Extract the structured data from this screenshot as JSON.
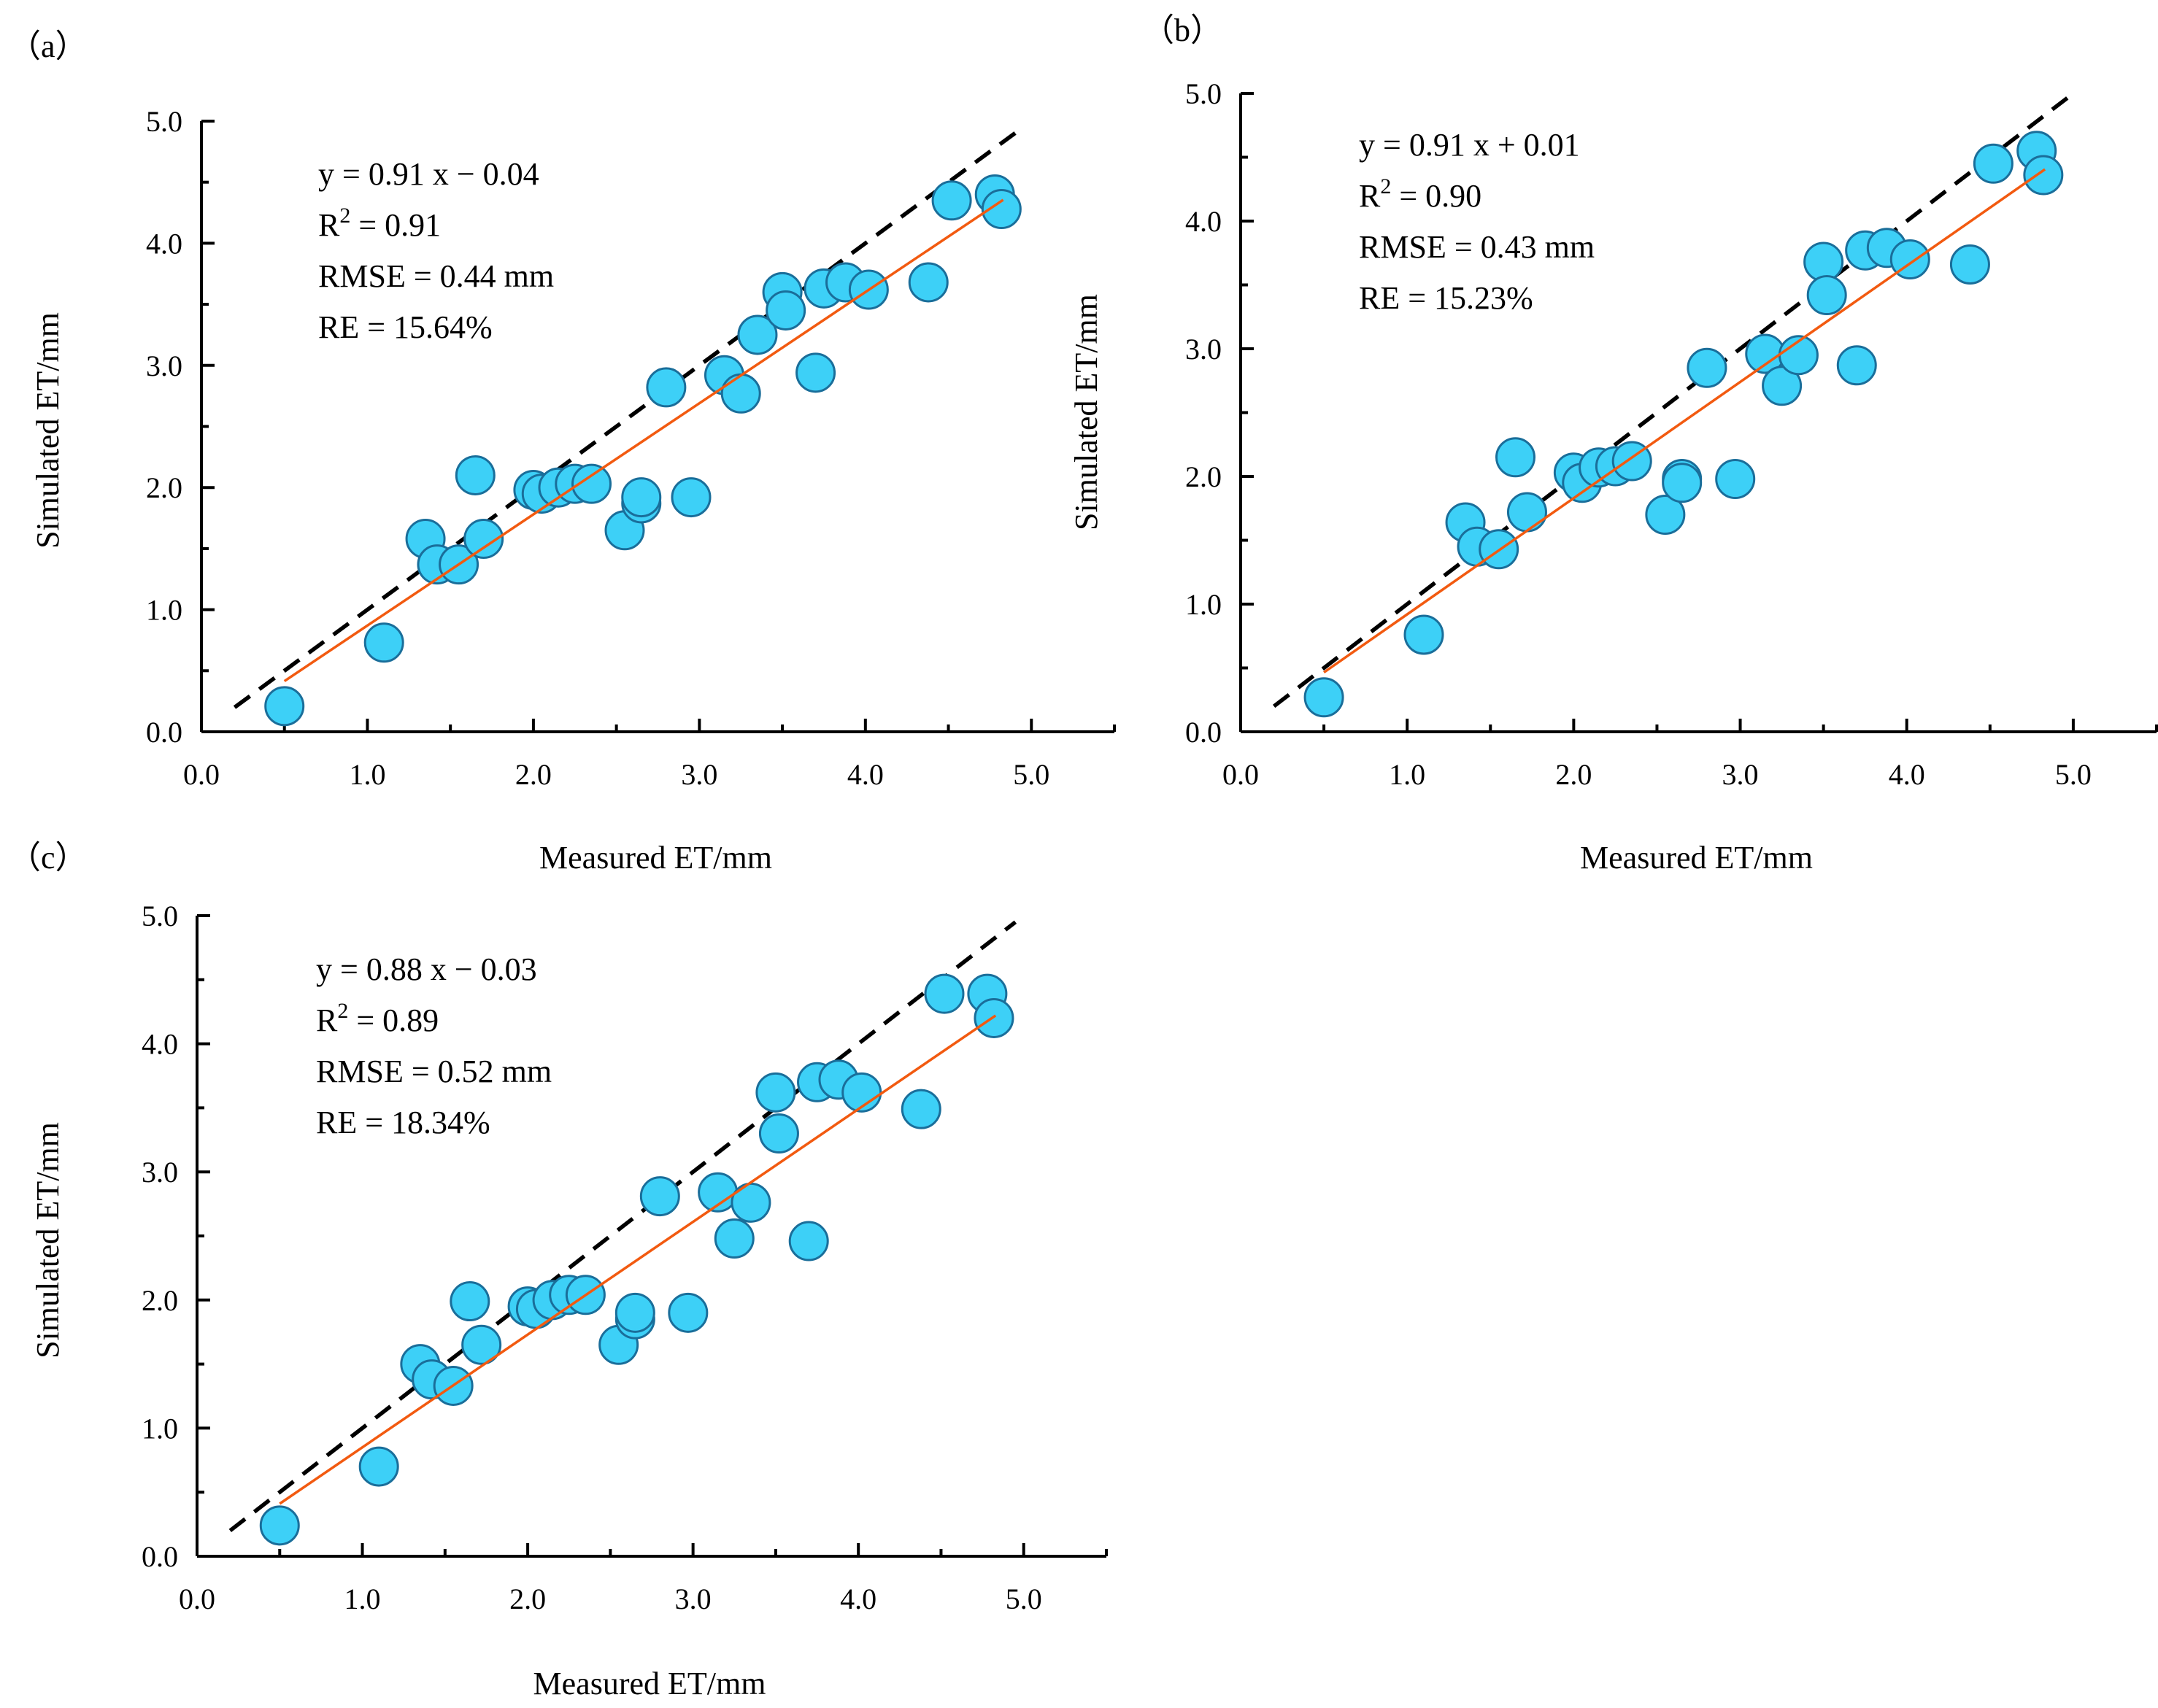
{
  "colors": {
    "point_fill": "#3DD0F7",
    "point_stroke": "#1A6E9A",
    "fit_line": "#F25A10",
    "reference_line": "#000000"
  },
  "chart_data": [
    {
      "panel_label": "（a）",
      "type": "scatter",
      "xlabel": "Measured ET/mm",
      "ylabel": "Simulated ET/mm",
      "xlim": [
        0,
        5.5
      ],
      "ylim": [
        0,
        5.0
      ],
      "xticks": [
        "0.0",
        "1.0",
        "2.0",
        "3.0",
        "4.0",
        "5.0"
      ],
      "yticks": [
        "0.0",
        "1.0",
        "2.0",
        "3.0",
        "4.0",
        "5.0"
      ],
      "stats": {
        "equation": "y = 0.91 x − 0.04",
        "r2_prefix": "R",
        "r2_value": " = 0.91",
        "rmse": "RMSE = 0.44 mm",
        "re": "RE = 15.64%"
      },
      "fit": {
        "slope": 0.91,
        "intercept": -0.04,
        "x_range": [
          0.5,
          4.83
        ]
      },
      "reference_line": {
        "slope": 1,
        "intercept": 0,
        "x_range": [
          0.2,
          4.95
        ]
      },
      "points": [
        [
          0.5,
          0.21
        ],
        [
          1.1,
          0.73
        ],
        [
          1.35,
          1.58
        ],
        [
          1.42,
          1.37
        ],
        [
          1.55,
          1.37
        ],
        [
          1.65,
          2.1
        ],
        [
          1.7,
          1.58
        ],
        [
          2.0,
          1.98
        ],
        [
          2.05,
          1.95
        ],
        [
          2.15,
          2.0
        ],
        [
          2.25,
          2.03
        ],
        [
          2.35,
          2.03
        ],
        [
          2.55,
          1.65
        ],
        [
          2.65,
          1.87
        ],
        [
          2.65,
          1.92
        ],
        [
          2.95,
          1.92
        ],
        [
          2.8,
          2.82
        ],
        [
          3.15,
          2.92
        ],
        [
          3.25,
          2.77
        ],
        [
          3.35,
          3.25
        ],
        [
          3.5,
          3.6
        ],
        [
          3.52,
          3.45
        ],
        [
          3.7,
          2.94
        ],
        [
          3.75,
          3.63
        ],
        [
          3.88,
          3.68
        ],
        [
          4.02,
          3.62
        ],
        [
          4.38,
          3.68
        ],
        [
          4.52,
          4.35
        ],
        [
          4.78,
          4.4
        ],
        [
          4.82,
          4.28
        ]
      ]
    },
    {
      "panel_label": "（b）",
      "type": "scatter",
      "xlabel": "Measured ET/mm",
      "ylabel": "Simulated ET/mm",
      "xlim": [
        0,
        5.5
      ],
      "ylim": [
        0,
        5.0
      ],
      "xticks": [
        "0.0",
        "1.0",
        "2.0",
        "3.0",
        "4.0",
        "5.0"
      ],
      "yticks": [
        "0.0",
        "1.0",
        "2.0",
        "3.0",
        "4.0",
        "5.0"
      ],
      "stats": {
        "equation": "y = 0.91 x + 0.01",
        "r2_prefix": "R",
        "r2_value": " = 0.90",
        "rmse": "RMSE = 0.43 mm",
        "re": "RE = 15.23%"
      },
      "fit": {
        "slope": 0.91,
        "intercept": 0.01,
        "x_range": [
          0.5,
          4.83
        ]
      },
      "reference_line": {
        "slope": 1,
        "intercept": 0,
        "x_range": [
          0.2,
          5.0
        ]
      },
      "points": [
        [
          0.5,
          0.27
        ],
        [
          1.1,
          0.76
        ],
        [
          1.35,
          1.64
        ],
        [
          1.42,
          1.45
        ],
        [
          1.55,
          1.43
        ],
        [
          1.65,
          2.15
        ],
        [
          1.72,
          1.72
        ],
        [
          2.0,
          2.03
        ],
        [
          2.05,
          1.95
        ],
        [
          2.15,
          2.07
        ],
        [
          2.25,
          2.08
        ],
        [
          2.35,
          2.12
        ],
        [
          2.55,
          1.7
        ],
        [
          2.65,
          1.98
        ],
        [
          2.65,
          1.95
        ],
        [
          2.97,
          1.98
        ],
        [
          2.8,
          2.85
        ],
        [
          3.15,
          2.96
        ],
        [
          3.25,
          2.71
        ],
        [
          3.35,
          2.95
        ],
        [
          3.5,
          3.68
        ],
        [
          3.52,
          3.42
        ],
        [
          3.7,
          2.87
        ],
        [
          3.75,
          3.77
        ],
        [
          3.88,
          3.79
        ],
        [
          4.02,
          3.7
        ],
        [
          4.38,
          3.66
        ],
        [
          4.52,
          4.45
        ],
        [
          4.78,
          4.55
        ],
        [
          4.82,
          4.36
        ]
      ]
    },
    {
      "panel_label": "（c）",
      "type": "scatter",
      "xlabel": "Measured ET/mm",
      "ylabel": "Simulated ET/mm",
      "xlim": [
        0,
        5.5
      ],
      "ylim": [
        0,
        5.0
      ],
      "xticks": [
        "0.0",
        "1.0",
        "2.0",
        "3.0",
        "4.0",
        "5.0"
      ],
      "yticks": [
        "0.0",
        "1.0",
        "2.0",
        "3.0",
        "4.0",
        "5.0"
      ],
      "stats": {
        "equation": "y = 0.88 x − 0.03",
        "r2_prefix": "R",
        "r2_value": " = 0.89",
        "rmse": "RMSE = 0.52 mm",
        "re": "RE = 18.34%"
      },
      "fit": {
        "slope": 0.88,
        "intercept": -0.03,
        "x_range": [
          0.5,
          4.83
        ]
      },
      "reference_line": {
        "slope": 1,
        "intercept": 0,
        "x_range": [
          0.2,
          4.95
        ]
      },
      "points": [
        [
          0.5,
          0.24
        ],
        [
          1.1,
          0.7
        ],
        [
          1.35,
          1.5
        ],
        [
          1.42,
          1.38
        ],
        [
          1.55,
          1.33
        ],
        [
          1.65,
          1.99
        ],
        [
          1.72,
          1.65
        ],
        [
          2.0,
          1.95
        ],
        [
          2.05,
          1.93
        ],
        [
          2.15,
          2.0
        ],
        [
          2.25,
          2.04
        ],
        [
          2.35,
          2.04
        ],
        [
          2.55,
          1.65
        ],
        [
          2.65,
          1.85
        ],
        [
          2.65,
          1.9
        ],
        [
          2.97,
          1.9
        ],
        [
          2.8,
          2.81
        ],
        [
          3.15,
          2.84
        ],
        [
          3.25,
          2.48
        ],
        [
          3.35,
          2.76
        ],
        [
          3.5,
          3.62
        ],
        [
          3.52,
          3.3
        ],
        [
          3.7,
          2.46
        ],
        [
          3.75,
          3.7
        ],
        [
          3.88,
          3.72
        ],
        [
          4.02,
          3.62
        ],
        [
          4.38,
          3.49
        ],
        [
          4.52,
          4.39
        ],
        [
          4.78,
          4.39
        ],
        [
          4.82,
          4.2
        ]
      ]
    }
  ]
}
